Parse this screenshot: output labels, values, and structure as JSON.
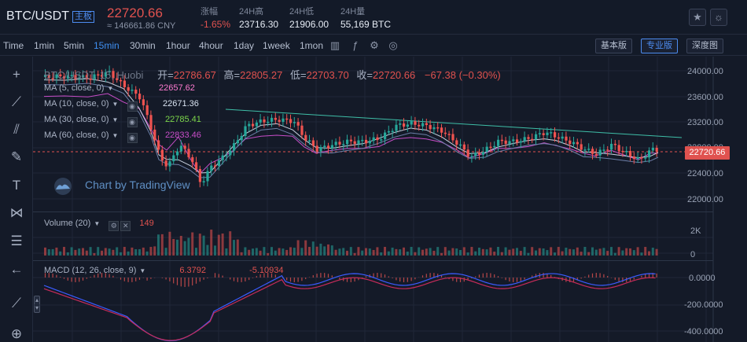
{
  "header": {
    "pair": "BTC/USDT",
    "pair_badge": "主板",
    "last_price": "22720.66",
    "cny_price": "≈ 146661.86 CNY",
    "stats": [
      {
        "label": "涨幅",
        "value": "-1.65%"
      },
      {
        "label": "24H高",
        "value": "23716.30"
      },
      {
        "label": "24H低",
        "value": "21906.00"
      },
      {
        "label": "24H量",
        "value": "55,169 BTC"
      }
    ],
    "buttons": {
      "favorite": "star-icon",
      "theme": "sun-icon"
    }
  },
  "toolbar": {
    "timeframes": [
      "Time",
      "1min",
      "5min",
      "15min",
      "30min",
      "1hour",
      "4hour",
      "1day",
      "1week",
      "1mon"
    ],
    "active_timeframe": "15min",
    "modes": [
      "基本版",
      "专业版",
      "深度图"
    ],
    "active_mode": "专业版"
  },
  "chart": {
    "ohlc": {
      "open_label": "开=",
      "open": "22786.67",
      "high_label": "高=",
      "high": "22805.27",
      "low_label": "低=",
      "low": "22703.70",
      "close_label": "收=",
      "close": "22720.66",
      "change": "−67.38 (−0.30%)"
    },
    "series_title": "BTC/USDT, 15, Huobi",
    "ma": [
      {
        "label": "MA (5, close, 0)",
        "value": "22657.62",
        "color": "#ff7bd1"
      },
      {
        "label": "MA (10, close, 0)",
        "value": "22671.36",
        "color": "#d8e2f0"
      },
      {
        "label": "MA (30, close, 0)",
        "value": "22785.41",
        "color": "#7cd64a"
      },
      {
        "label": "MA (60, close, 0)",
        "value": "22833.46",
        "color": "#c84dc8"
      }
    ],
    "watermark": "Chart by TradingView",
    "price_axis": [
      "24000.00",
      "23600.00",
      "23200.00",
      "22800.00",
      "22400.00",
      "22000.00"
    ],
    "current_price_tag": "22720.66",
    "volume": {
      "label": "Volume (20)",
      "value": "149",
      "axis": [
        "2K",
        "0"
      ]
    },
    "macd": {
      "label": "MACD (12, 26, close, 9)",
      "value1": "6.3792",
      "value2": "-5.10934",
      "axis": [
        "0.0000",
        "-200.0000",
        "-400.0000"
      ]
    },
    "colors": {
      "up": "#26a69a",
      "down": "#ef5350"
    }
  }
}
